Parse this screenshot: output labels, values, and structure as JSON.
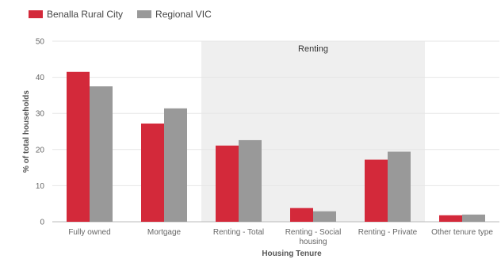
{
  "chart_data": {
    "type": "bar",
    "title": "",
    "xlabel": "Housing Tenure",
    "ylabel": "% of total households",
    "ylim": [
      0,
      50
    ],
    "yticks": [
      0,
      10,
      20,
      30,
      40,
      50
    ],
    "grid": true,
    "legend_position": "top-left",
    "categories": [
      [
        "Fully owned"
      ],
      [
        "Mortgage"
      ],
      [
        "Renting - Total"
      ],
      [
        "Renting - Social",
        "housing"
      ],
      [
        "Renting - Private"
      ],
      [
        "Other tenure type"
      ]
    ],
    "series": [
      {
        "name": "Benalla Rural City",
        "color": "#d3293a",
        "values": [
          41.5,
          27.2,
          21.1,
          3.8,
          17.2,
          1.8
        ]
      },
      {
        "name": "Regional VIC",
        "color": "#999999",
        "values": [
          37.5,
          31.4,
          22.6,
          2.9,
          19.4,
          2.0
        ]
      }
    ],
    "shaded_band": {
      "label": "Renting",
      "from_category": 2,
      "to_category": 4,
      "color": "#efefef"
    }
  }
}
